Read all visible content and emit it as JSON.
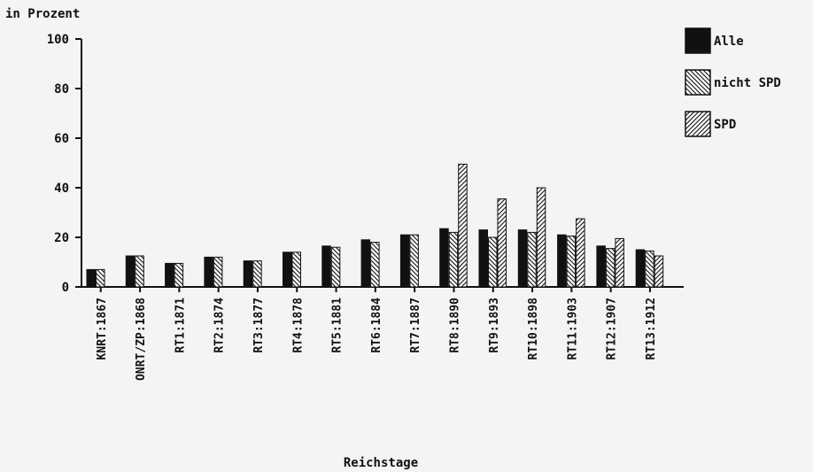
{
  "chart_data": {
    "type": "bar",
    "ylabel": "in Prozent",
    "xlabel": "Reichstage",
    "ylim": [
      0,
      100
    ],
    "yticks": [
      0,
      20,
      40,
      60,
      80,
      100
    ],
    "categories": [
      "KNRT:1867",
      "ONRT/ZP:1868",
      "RT1:1871",
      "RT2:1874",
      "RT3:1877",
      "RT4:1878",
      "RT5:1881",
      "RT6:1884",
      "RT7:1887",
      "RT8:1890",
      "RT9:1893",
      "RT10:1898",
      "RT11:1903",
      "RT12:1907",
      "RT13:1912"
    ],
    "series": [
      {
        "name": "Alle",
        "pattern": "solid",
        "values": [
          7,
          12.5,
          9.5,
          12,
          10.5,
          14,
          16.5,
          19,
          21,
          23.5,
          23,
          23,
          21,
          16.5,
          15
        ]
      },
      {
        "name": "nicht SPD",
        "pattern": "backslash",
        "values": [
          7,
          12.5,
          9.5,
          12,
          10.5,
          14,
          16,
          18,
          21,
          22,
          20,
          22,
          20.5,
          15.5,
          14.5
        ]
      },
      {
        "name": "SPD",
        "pattern": "slash",
        "values": [
          null,
          null,
          null,
          null,
          null,
          null,
          null,
          null,
          null,
          49.5,
          35.5,
          40,
          27.5,
          19.5,
          12.5
        ]
      }
    ],
    "legend": "top-right",
    "grid": false
  }
}
